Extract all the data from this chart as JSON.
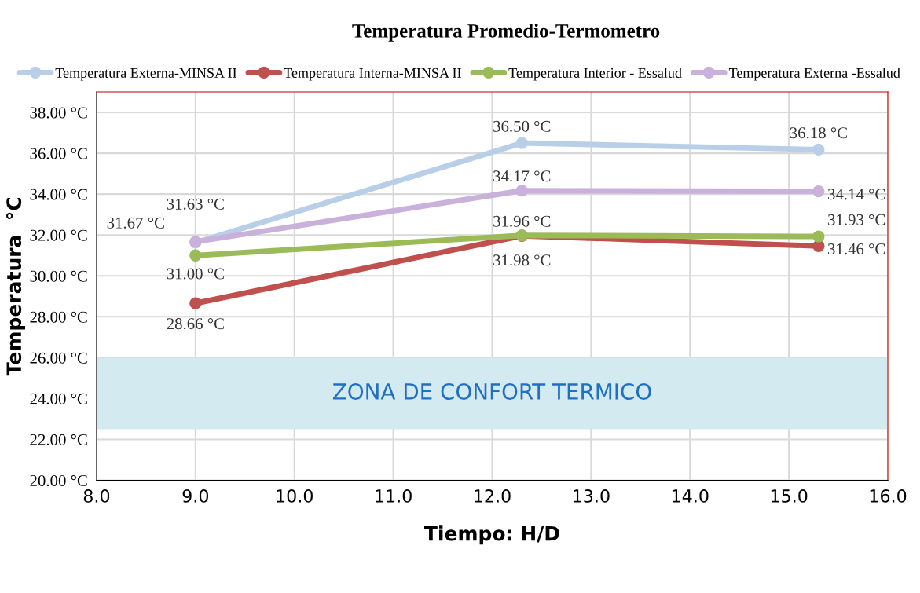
{
  "chart_data": {
    "type": "line",
    "title": "Temperatura Promedio-Termometro",
    "xlabel": "Tiempo: H/D",
    "ylabel": "Temperatura  °C",
    "x": [
      9.0,
      12.3,
      15.3
    ],
    "series": [
      {
        "name": "Temperatura Externa-MINSA II",
        "color": "#b9cfe8",
        "values": [
          31.63,
          36.5,
          36.18
        ],
        "value_labels": [
          "31.63 °C",
          "36.50 °C",
          "36.18 °C"
        ]
      },
      {
        "name": "Temperatura Interna-MINSA II",
        "color": "#c0504d",
        "values": [
          28.66,
          31.96,
          31.46
        ],
        "value_labels": [
          "28.66 °C",
          "31.96 °C",
          "31.46 °C"
        ]
      },
      {
        "name": "Temperatura Interior - Essalud",
        "color": "#9bbb59",
        "values": [
          31.0,
          31.98,
          31.93
        ],
        "value_labels": [
          "31.00 °C",
          "31.98 °C",
          "31.93 °C"
        ]
      },
      {
        "name": "Temperatura Externa -Essalud",
        "color": "#c9b1dc",
        "values": [
          31.67,
          34.17,
          34.14
        ],
        "value_labels": [
          "31.67 °C",
          "34.17 °C",
          "34.14 °C"
        ]
      }
    ],
    "xlim": [
      8,
      16
    ],
    "xticks": [
      {
        "value": 8,
        "label": "8.0"
      },
      {
        "value": 9,
        "label": "9.0"
      },
      {
        "value": 10,
        "label": "10.0"
      },
      {
        "value": 11,
        "label": "11.0"
      },
      {
        "value": 12,
        "label": "12.0"
      },
      {
        "value": 13,
        "label": "13.0"
      },
      {
        "value": 14,
        "label": "14.0"
      },
      {
        "value": 15,
        "label": "15.0"
      },
      {
        "value": 16,
        "label": "16.0"
      }
    ],
    "ylim": [
      20,
      39
    ],
    "yticks": [
      {
        "value": 20,
        "label": "20.00 °C"
      },
      {
        "value": 22,
        "label": "22.00 °C"
      },
      {
        "value": 24,
        "label": "24.00 °C"
      },
      {
        "value": 26,
        "label": "26.00 °C"
      },
      {
        "value": 28,
        "label": "28.00 °C"
      },
      {
        "value": 30,
        "label": "30.00 °C"
      },
      {
        "value": 32,
        "label": "32.00 °C"
      },
      {
        "value": 34,
        "label": "34.00 °C"
      },
      {
        "value": 36,
        "label": "36.00 °C"
      },
      {
        "value": 38,
        "label": "38.00 °C"
      }
    ],
    "bands": [
      {
        "axis": "y",
        "from": 22.5,
        "to": 26,
        "label": "ZONA DE CONFORT TERMICO",
        "color": "#d4eaf1"
      }
    ],
    "grid": true,
    "legend": "top",
    "marker": "circle",
    "line_style": "solid"
  }
}
